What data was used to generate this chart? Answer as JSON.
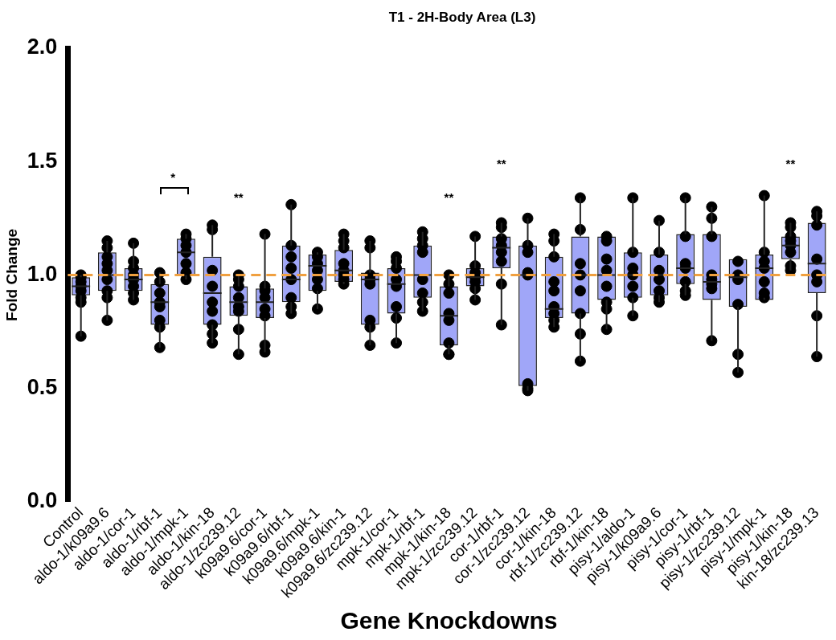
{
  "chart_data": {
    "type": "box",
    "title": "T1 - 2H-Body Area (L3)",
    "xlabel": "Gene Knockdowns",
    "ylabel": "Fold Change",
    "categories": [
      "Control",
      "aldo-1/k09a9.6",
      "aldo-1/cor-1",
      "aldo-1/rbf-1",
      "aldo-1/mpk-1",
      "aldo-1/kin-18",
      "aldo-1/zc239.12",
      "k09a9.6/cor-1",
      "k09a9.6/rbf-1",
      "k09a9.6/mpk-1",
      "k09a9.6/kin-1",
      "k09a9.6/zc239.12",
      "mpk-1/cor-1",
      "mpk-1/rbf-1",
      "mpk-1/kin-18",
      "mpk-1/zc239.12",
      "cor-1/rbf-1",
      "cor-1/zc239.12",
      "cor-1/kin-18",
      "rbf-1/zc239.12",
      "rbf-1/kin-18",
      "pisy-1/aldo-1",
      "pisy-1/k09a9.6",
      "pisy-1/cor-1",
      "pisy-1/rbf-1",
      "pisy-1/zc239.12",
      "pisy-1/mpk-1",
      "pisy-1/kin-18",
      "kin-18/zc239.13"
    ],
    "color": "#a0a6f8",
    "boxes": [
      {
        "low": 0.73,
        "q1": 0.91,
        "median": 0.95,
        "q3": 0.99,
        "high": 1.0
      },
      {
        "low": 0.8,
        "q1": 0.93,
        "median": 1.0,
        "q3": 1.1,
        "high": 1.15
      },
      {
        "low": 0.89,
        "q1": 0.93,
        "median": 0.98,
        "q3": 1.03,
        "high": 1.14
      },
      {
        "low": 0.68,
        "q1": 0.78,
        "median": 0.88,
        "q3": 0.96,
        "high": 1.01
      },
      {
        "low": 0.98,
        "q1": 1.0,
        "median": 1.1,
        "q3": 1.16,
        "high": 1.18
      },
      {
        "low": 0.7,
        "q1": 0.78,
        "median": 0.92,
        "q3": 1.08,
        "high": 1.22
      },
      {
        "low": 0.65,
        "q1": 0.82,
        "median": 0.88,
        "q3": 0.95,
        "high": 1.0
      },
      {
        "low": 0.66,
        "q1": 0.81,
        "median": 0.88,
        "q3": 0.94,
        "high": 1.18
      },
      {
        "low": 0.83,
        "q1": 0.88,
        "median": 0.98,
        "q3": 1.13,
        "high": 1.31
      },
      {
        "low": 0.85,
        "q1": 0.93,
        "median": 1.04,
        "q3": 1.09,
        "high": 1.1
      },
      {
        "low": 0.96,
        "q1": 0.97,
        "median": 1.02,
        "q3": 1.11,
        "high": 1.18
      },
      {
        "low": 0.69,
        "q1": 0.78,
        "median": 0.98,
        "q3": 1.01,
        "high": 1.15
      },
      {
        "low": 0.7,
        "q1": 0.83,
        "median": 0.96,
        "q3": 1.03,
        "high": 1.08
      },
      {
        "low": 0.84,
        "q1": 0.9,
        "median": 1.0,
        "q3": 1.13,
        "high": 1.19
      },
      {
        "low": 0.65,
        "q1": 0.69,
        "median": 0.82,
        "q3": 0.95,
        "high": 1.0
      },
      {
        "low": 0.89,
        "q1": 0.95,
        "median": 0.99,
        "q3": 1.03,
        "high": 1.17
      },
      {
        "low": 0.78,
        "q1": 1.03,
        "median": 1.12,
        "q3": 1.17,
        "high": 1.23
      },
      {
        "low": 0.49,
        "q1": 0.51,
        "median": 1.0,
        "q3": 1.13,
        "high": 1.25
      },
      {
        "low": 0.77,
        "q1": 0.81,
        "median": 0.85,
        "q3": 1.08,
        "high": 1.18
      },
      {
        "low": 0.62,
        "q1": 0.83,
        "median": 1.0,
        "q3": 1.17,
        "high": 1.34
      },
      {
        "low": 0.76,
        "q1": 0.89,
        "median": 1.0,
        "q3": 1.17,
        "high": 1.17
      },
      {
        "low": 0.82,
        "q1": 0.9,
        "median": 1.0,
        "q3": 1.1,
        "high": 1.34
      },
      {
        "low": 0.88,
        "q1": 0.91,
        "median": 1.0,
        "q3": 1.09,
        "high": 1.24
      },
      {
        "low": 0.91,
        "q1": 0.96,
        "median": 1.03,
        "q3": 1.18,
        "high": 1.34
      },
      {
        "low": 0.71,
        "q1": 0.89,
        "median": 0.97,
        "q3": 1.18,
        "high": 1.3
      },
      {
        "low": 0.57,
        "q1": 0.86,
        "median": 0.99,
        "q3": 1.07,
        "high": 1.07
      },
      {
        "low": 0.9,
        "q1": 0.89,
        "median": 1.03,
        "q3": 1.09,
        "high": 1.35
      },
      {
        "low": 1.02,
        "q1": 1.07,
        "median": 1.13,
        "q3": 1.17,
        "high": 1.23
      },
      {
        "low": 0.64,
        "q1": 0.92,
        "median": 1.05,
        "q3": 1.23,
        "high": 1.28
      }
    ],
    "series": [
      {
        "type": "scatter",
        "color": "#000000",
        "marker": "circle",
        "x": [
          "Control",
          "Control",
          "Control",
          "Control",
          "Control",
          "Control",
          "Control",
          "Control",
          "aldo-1/k09a9.6",
          "aldo-1/k09a9.6",
          "aldo-1/k09a9.6",
          "aldo-1/k09a9.6",
          "aldo-1/k09a9.6",
          "aldo-1/k09a9.6",
          "aldo-1/k09a9.6",
          "aldo-1/k09a9.6",
          "aldo-1/k09a9.6",
          "aldo-1/cor-1",
          "aldo-1/cor-1",
          "aldo-1/cor-1",
          "aldo-1/cor-1",
          "aldo-1/cor-1",
          "aldo-1/cor-1",
          "aldo-1/cor-1",
          "aldo-1/cor-1",
          "aldo-1/rbf-1",
          "aldo-1/rbf-1",
          "aldo-1/rbf-1",
          "aldo-1/rbf-1",
          "aldo-1/rbf-1",
          "aldo-1/rbf-1",
          "aldo-1/rbf-1",
          "aldo-1/rbf-1",
          "aldo-1/mpk-1",
          "aldo-1/mpk-1",
          "aldo-1/mpk-1",
          "aldo-1/mpk-1",
          "aldo-1/mpk-1",
          "aldo-1/mpk-1",
          "aldo-1/mpk-1",
          "aldo-1/kin-18",
          "aldo-1/kin-18",
          "aldo-1/kin-18",
          "aldo-1/kin-18",
          "aldo-1/kin-18",
          "aldo-1/kin-18",
          "aldo-1/kin-18",
          "aldo-1/kin-18",
          "aldo-1/kin-18",
          "aldo-1/zc239.12",
          "aldo-1/zc239.12",
          "aldo-1/zc239.12",
          "aldo-1/zc239.12",
          "aldo-1/zc239.12",
          "aldo-1/zc239.12",
          "aldo-1/zc239.12",
          "aldo-1/zc239.12",
          "k09a9.6/cor-1",
          "k09a9.6/cor-1",
          "k09a9.6/cor-1",
          "k09a9.6/cor-1",
          "k09a9.6/cor-1",
          "k09a9.6/cor-1",
          "k09a9.6/cor-1",
          "k09a9.6/cor-1",
          "k09a9.6/rbf-1",
          "k09a9.6/rbf-1",
          "k09a9.6/rbf-1",
          "k09a9.6/rbf-1",
          "k09a9.6/rbf-1",
          "k09a9.6/rbf-1",
          "k09a9.6/rbf-1",
          "k09a9.6/rbf-1",
          "k09a9.6/mpk-1",
          "k09a9.6/mpk-1",
          "k09a9.6/mpk-1",
          "k09a9.6/mpk-1",
          "k09a9.6/mpk-1",
          "k09a9.6/mpk-1",
          "k09a9.6/mpk-1",
          "k09a9.6/kin-1",
          "k09a9.6/kin-1",
          "k09a9.6/kin-1",
          "k09a9.6/kin-1",
          "k09a9.6/kin-1",
          "k09a9.6/kin-1",
          "k09a9.6/kin-1",
          "k09a9.6/kin-1",
          "k09a9.6/zc239.12",
          "k09a9.6/zc239.12",
          "k09a9.6/zc239.12",
          "k09a9.6/zc239.12",
          "k09a9.6/zc239.12",
          "k09a9.6/zc239.12",
          "k09a9.6/zc239.12",
          "k09a9.6/zc239.12",
          "mpk-1/cor-1",
          "mpk-1/cor-1",
          "mpk-1/cor-1",
          "mpk-1/cor-1",
          "mpk-1/cor-1",
          "mpk-1/cor-1",
          "mpk-1/cor-1",
          "mpk-1/cor-1",
          "mpk-1/rbf-1",
          "mpk-1/rbf-1",
          "mpk-1/rbf-1",
          "mpk-1/rbf-1",
          "mpk-1/rbf-1",
          "mpk-1/rbf-1",
          "mpk-1/rbf-1",
          "mpk-1/rbf-1",
          "mpk-1/kin-18",
          "mpk-1/kin-18",
          "mpk-1/kin-18",
          "mpk-1/kin-18",
          "mpk-1/kin-18",
          "mpk-1/kin-18",
          "mpk-1/kin-18",
          "mpk-1/kin-18",
          "mpk-1/zc239.12",
          "mpk-1/zc239.12",
          "mpk-1/zc239.12",
          "mpk-1/zc239.12",
          "mpk-1/zc239.12",
          "mpk-1/zc239.12",
          "mpk-1/zc239.12",
          "cor-1/rbf-1",
          "cor-1/rbf-1",
          "cor-1/rbf-1",
          "cor-1/rbf-1",
          "cor-1/rbf-1",
          "cor-1/rbf-1",
          "cor-1/rbf-1",
          "cor-1/rbf-1",
          "cor-1/zc239.12",
          "cor-1/zc239.12",
          "cor-1/zc239.12",
          "cor-1/zc239.12",
          "cor-1/zc239.12",
          "cor-1/zc239.12",
          "cor-1/zc239.12",
          "cor-1/zc239.12",
          "cor-1/kin-18",
          "cor-1/kin-18",
          "cor-1/kin-18",
          "cor-1/kin-18",
          "cor-1/kin-18",
          "cor-1/kin-18",
          "cor-1/kin-18",
          "cor-1/kin-18",
          "cor-1/kin-18",
          "rbf-1/zc239.12",
          "rbf-1/zc239.12",
          "rbf-1/zc239.12",
          "rbf-1/zc239.12",
          "rbf-1/zc239.12",
          "rbf-1/zc239.12",
          "rbf-1/zc239.12",
          "rbf-1/zc239.12",
          "rbf-1/kin-18",
          "rbf-1/kin-18",
          "rbf-1/kin-18",
          "rbf-1/kin-18",
          "rbf-1/kin-18",
          "rbf-1/kin-18",
          "rbf-1/kin-18",
          "rbf-1/kin-18",
          "pisy-1/aldo-1",
          "pisy-1/aldo-1",
          "pisy-1/aldo-1",
          "pisy-1/aldo-1",
          "pisy-1/aldo-1",
          "pisy-1/aldo-1",
          "pisy-1/aldo-1",
          "pisy-1/k09a9.6",
          "pisy-1/k09a9.6",
          "pisy-1/k09a9.6",
          "pisy-1/k09a9.6",
          "pisy-1/k09a9.6",
          "pisy-1/k09a9.6",
          "pisy-1/k09a9.6",
          "pisy-1/cor-1",
          "pisy-1/cor-1",
          "pisy-1/cor-1",
          "pisy-1/cor-1",
          "pisy-1/cor-1",
          "pisy-1/cor-1",
          "pisy-1/cor-1",
          "pisy-1/rbf-1",
          "pisy-1/rbf-1",
          "pisy-1/rbf-1",
          "pisy-1/rbf-1",
          "pisy-1/rbf-1",
          "pisy-1/rbf-1",
          "pisy-1/rbf-1",
          "pisy-1/rbf-1",
          "pisy-1/zc239.12",
          "pisy-1/zc239.12",
          "pisy-1/zc239.12",
          "pisy-1/zc239.12",
          "pisy-1/zc239.12",
          "pisy-1/zc239.12",
          "pisy-1/mpk-1",
          "pisy-1/mpk-1",
          "pisy-1/mpk-1",
          "pisy-1/mpk-1",
          "pisy-1/mpk-1",
          "pisy-1/mpk-1",
          "pisy-1/mpk-1",
          "pisy-1/kin-18",
          "pisy-1/kin-18",
          "pisy-1/kin-18",
          "pisy-1/kin-18",
          "pisy-1/kin-18",
          "pisy-1/kin-18",
          "pisy-1/kin-18",
          "pisy-1/kin-18",
          "kin-18/zc239.13",
          "kin-18/zc239.13",
          "kin-18/zc239.13",
          "kin-18/zc239.13",
          "kin-18/zc239.13",
          "kin-18/zc239.13",
          "kin-18/zc239.13",
          "kin-18/zc239.13"
        ],
        "values": [
          0.73,
          0.88,
          0.9,
          0.93,
          0.95,
          0.97,
          0.99,
          1.0,
          0.8,
          0.9,
          0.93,
          0.98,
          1.02,
          1.05,
          1.08,
          1.12,
          1.15,
          0.89,
          0.92,
          0.95,
          0.98,
          1.0,
          1.03,
          1.06,
          1.14,
          0.68,
          0.77,
          0.8,
          0.86,
          0.88,
          0.92,
          0.97,
          1.01,
          0.98,
          1.01,
          1.05,
          1.1,
          1.13,
          1.16,
          1.18,
          0.7,
          0.74,
          0.78,
          0.84,
          0.88,
          0.95,
          1.02,
          1.2,
          1.22,
          0.65,
          0.76,
          0.84,
          0.86,
          0.9,
          0.95,
          0.98,
          1.0,
          0.66,
          0.69,
          0.82,
          0.85,
          0.9,
          0.93,
          0.95,
          1.18,
          0.83,
          0.86,
          0.9,
          0.98,
          1.03,
          1.08,
          1.13,
          1.31,
          0.85,
          0.94,
          0.98,
          1.02,
          1.05,
          1.08,
          1.1,
          0.96,
          0.98,
          1.0,
          1.02,
          1.05,
          1.12,
          1.15,
          1.18,
          0.69,
          0.77,
          0.8,
          0.96,
          0.98,
          1.0,
          1.12,
          1.15,
          0.7,
          0.81,
          0.86,
          0.95,
          0.98,
          1.03,
          1.06,
          1.08,
          0.84,
          0.88,
          0.92,
          0.98,
          1.1,
          1.13,
          1.16,
          1.19,
          0.65,
          0.65,
          0.7,
          0.8,
          0.83,
          0.92,
          0.96,
          1.0,
          0.89,
          0.94,
          0.97,
          0.99,
          1.01,
          1.04,
          1.17,
          0.78,
          0.96,
          1.06,
          1.1,
          1.13,
          1.16,
          1.21,
          1.23,
          0.49,
          0.5,
          0.52,
          1.0,
          1.01,
          1.1,
          1.13,
          1.25,
          0.77,
          0.8,
          0.83,
          0.86,
          0.93,
          0.97,
          1.08,
          1.15,
          1.18,
          0.62,
          0.74,
          0.83,
          0.93,
          1.0,
          1.05,
          1.2,
          1.34,
          0.76,
          0.85,
          0.88,
          0.95,
          1.02,
          1.07,
          1.15,
          1.17,
          0.82,
          0.9,
          0.95,
          1.0,
          1.03,
          1.1,
          1.34,
          0.88,
          0.9,
          0.93,
          0.98,
          1.02,
          1.1,
          1.24,
          0.91,
          0.93,
          0.97,
          1.03,
          1.05,
          1.17,
          1.34,
          0.71,
          0.94,
          0.96,
          0.98,
          1.0,
          1.17,
          1.25,
          1.3,
          0.57,
          0.65,
          0.87,
          0.98,
          1.0,
          1.06,
          0.9,
          0.92,
          0.97,
          1.03,
          1.06,
          1.1,
          1.35,
          1.02,
          1.04,
          1.1,
          1.13,
          1.15,
          1.17,
          1.21,
          1.23,
          0.64,
          0.82,
          0.97,
          1.0,
          1.07,
          1.22,
          1.26,
          1.28
        ]
      }
    ],
    "ylim": [
      0,
      2.0
    ],
    "yticks": [
      {
        "value": 0,
        "label": "0.0"
      },
      {
        "value": 0.5,
        "label": "0.5"
      },
      {
        "value": 1,
        "label": "1.0"
      },
      {
        "value": 1.5,
        "label": "1.5"
      },
      {
        "value": 2,
        "label": "2.0"
      }
    ],
    "ref_lines": [
      {
        "axis": "y",
        "value": 1.0,
        "color": "#f0a040",
        "line_style": "dashed"
      }
    ],
    "annotations": [
      "*",
      "**",
      "**",
      "**",
      "**"
    ],
    "grid": false,
    "legend": false
  }
}
